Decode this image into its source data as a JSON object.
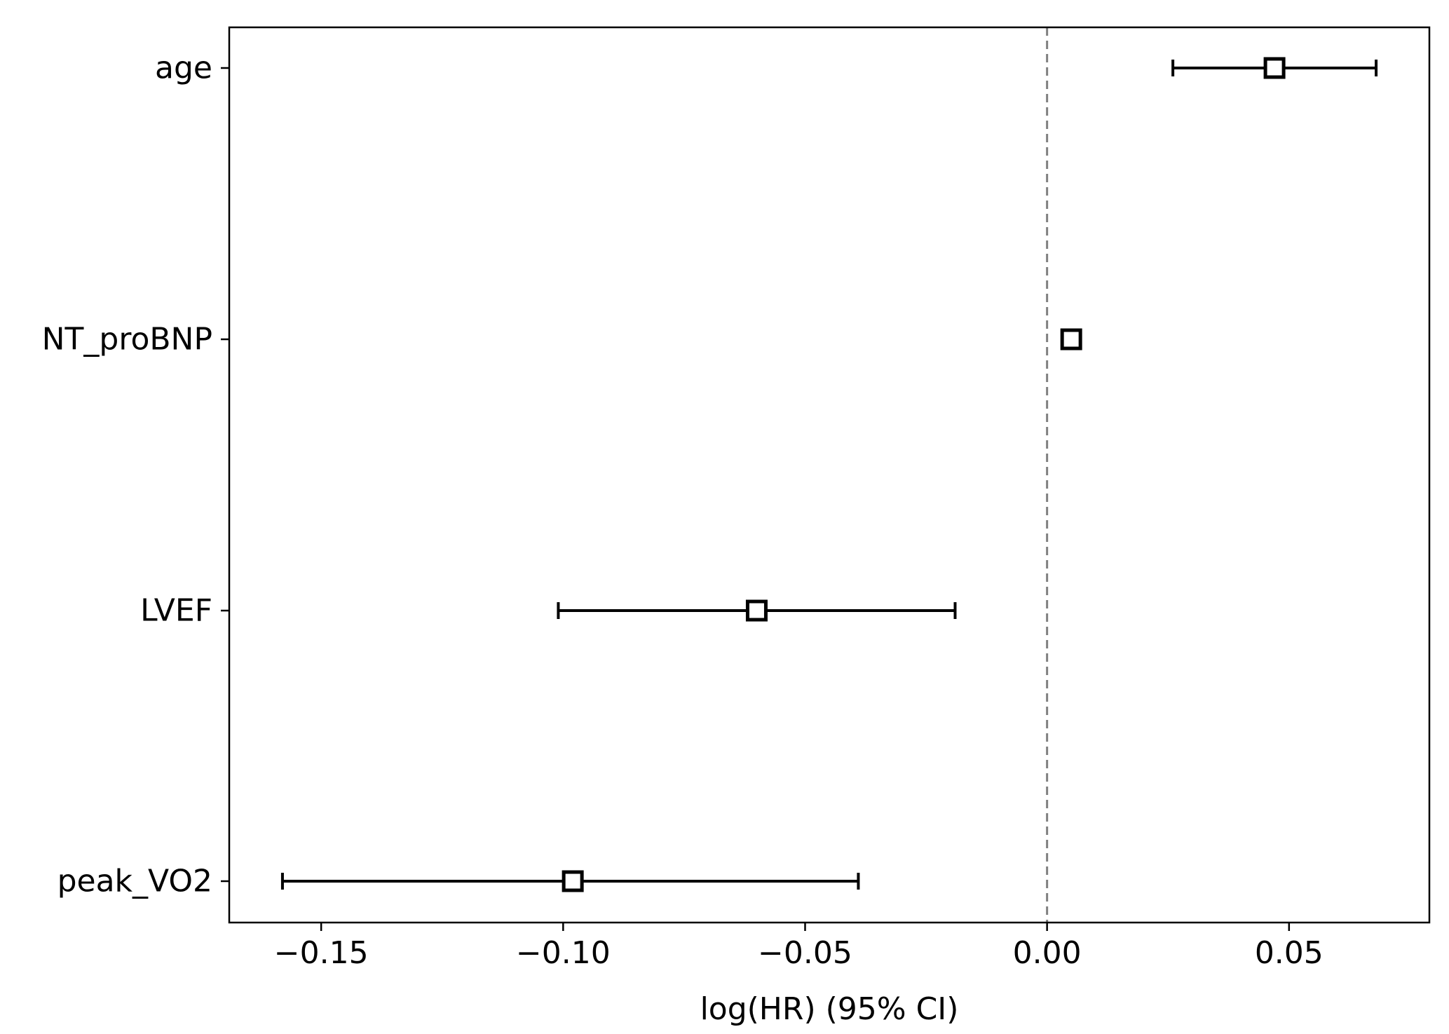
{
  "chart_data": {
    "type": "forest",
    "title": "",
    "xlabel": "log(HR) (95% CI)",
    "ylabel": "",
    "xlim": [
      -0.169,
      0.079
    ],
    "xticks": [
      -0.15,
      -0.1,
      -0.05,
      0.0,
      0.05
    ],
    "xtick_labels": [
      "−0.15",
      "−0.10",
      "−0.05",
      "0.00",
      "0.05"
    ],
    "reference_line": 0.0,
    "grid": false,
    "rows": [
      {
        "label": "age",
        "coef": 0.047,
        "lower": 0.026,
        "upper": 0.068
      },
      {
        "label": "NT_proBNP",
        "coef": 0.005,
        "lower": 0.004,
        "upper": 0.006
      },
      {
        "label": "LVEF",
        "coef": -0.06,
        "lower": -0.101,
        "upper": -0.019
      },
      {
        "label": "peak_VO2",
        "coef": -0.098,
        "lower": -0.158,
        "upper": -0.039
      }
    ],
    "colors": {
      "line": "#000000",
      "marker_fill": "#ffffff",
      "reference": "#808080"
    }
  }
}
